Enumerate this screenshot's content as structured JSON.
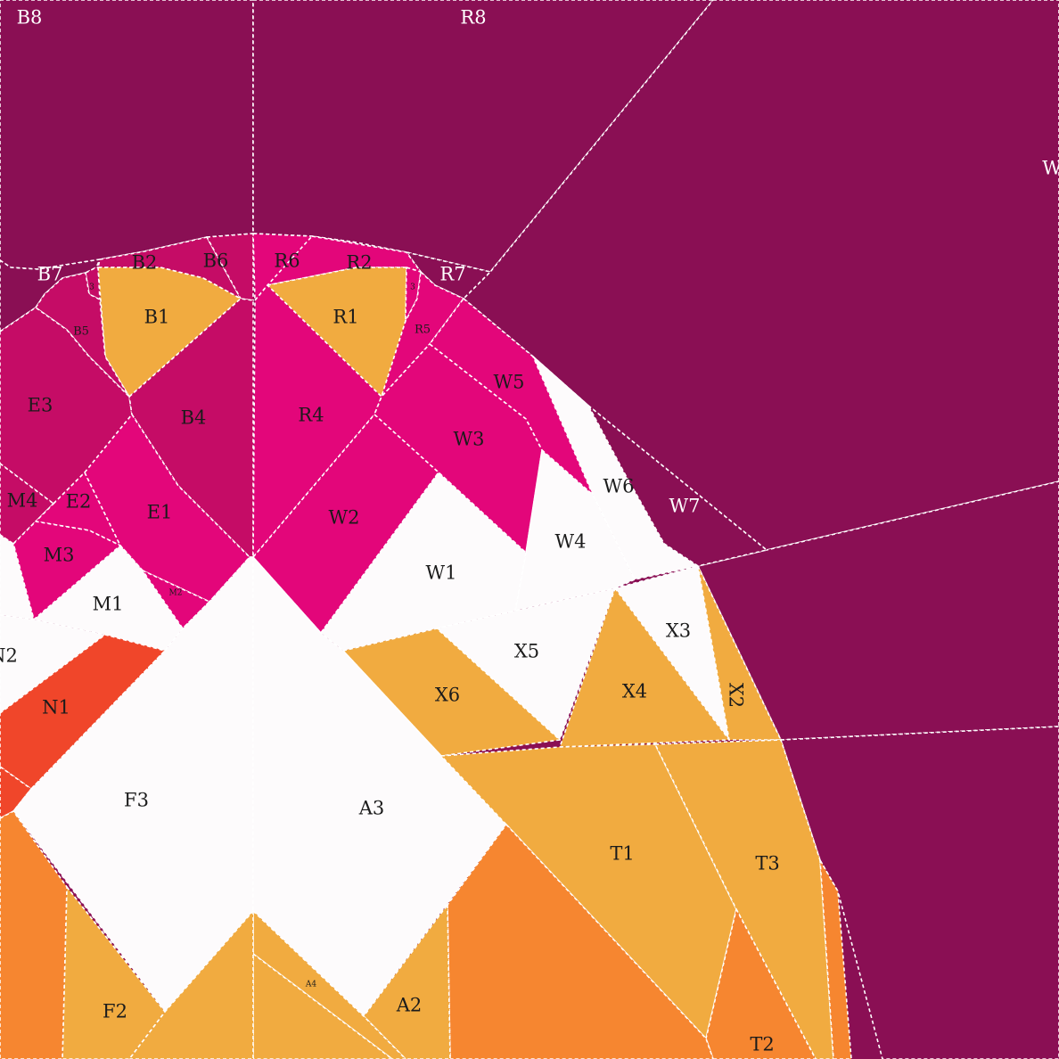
{
  "colors": {
    "plum": "#8a0f54",
    "magenta": "#e3067a",
    "berry": "#c50c66",
    "yellow": "#f1ab40",
    "orange": "#f68630",
    "red": "#f0462a",
    "white": "#fdfbfc",
    "seam": "#ffffff",
    "label_dark": "#1b1b1b",
    "label_light": "#ffffff"
  },
  "labels": {
    "B8": "B8",
    "R8": "R8",
    "W8": "W",
    "B7": "B7",
    "B2": "B2",
    "B6": "B6",
    "R6": "R6",
    "R2": "R2",
    "R7": "R7",
    "B1": "B1",
    "R1": "R1",
    "B3": "3",
    "B5": "B5",
    "R5": "R5",
    "R3": "3",
    "E3": "E3",
    "B4": "B4",
    "R4": "R4",
    "W5": "W5",
    "W3": "W3",
    "W6": "W6",
    "W7": "W7",
    "M4": "M4",
    "E2": "E2",
    "E1": "E1",
    "W2": "W2",
    "W4": "W4",
    "M3": "M3",
    "W1": "W1",
    "M1": "M1",
    "M2": "M2",
    "X3": "X3",
    "N2": "N2",
    "X5": "X5",
    "X2": "X2",
    "X6": "X6",
    "X4": "X4",
    "N1": "N1",
    "F3": "F3",
    "A3": "A3",
    "T1": "T1",
    "T3": "T3",
    "A4": "A4",
    "F2": "F2",
    "A2": "A2",
    "T2": "T2"
  }
}
